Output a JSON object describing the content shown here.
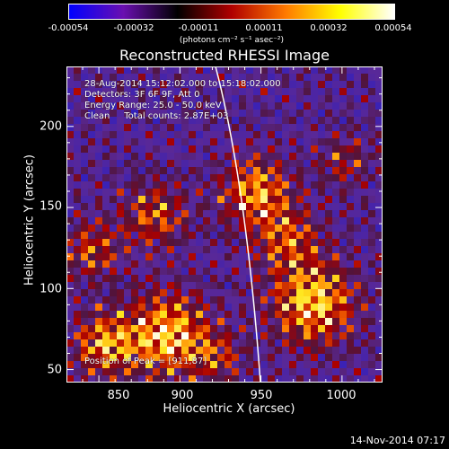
{
  "colorbar": {
    "labels": [
      "-0.00054",
      "-0.00032",
      "-0.00011",
      "0.00011",
      "0.00032",
      "0.00054"
    ],
    "units": "(photons cm⁻² s⁻¹ asec⁻²)",
    "colors": [
      "#0000ff",
      "#6a0fb0",
      "#000000",
      "#b00000",
      "#ff7a00",
      "#ffff00",
      "#ffffff"
    ]
  },
  "title": "Reconstructed RHESSI Image",
  "info": {
    "time_range": "28-Aug-2014 15:12:02.000 to 15:18:02.000",
    "detectors": "Detectors: 3F 6F 9F, Att 0",
    "energy": "Energy Range: 25.0 - 50.0 keV",
    "method": "Clean     Total counts: 2.87E+03",
    "peak": "Position of Peak = [911,87]"
  },
  "axes": {
    "xlabel": "Heliocentric X (arcsec)",
    "ylabel": "Heliocentric Y (arcsec)",
    "xticks": [
      "850",
      "900",
      "950",
      "1000"
    ],
    "yticks": [
      "200",
      "150",
      "100",
      "50"
    ],
    "xlim": [
      830,
      1025
    ],
    "ylim": [
      42,
      237
    ]
  },
  "timestamp": "14-Nov-2014 07:17"
}
